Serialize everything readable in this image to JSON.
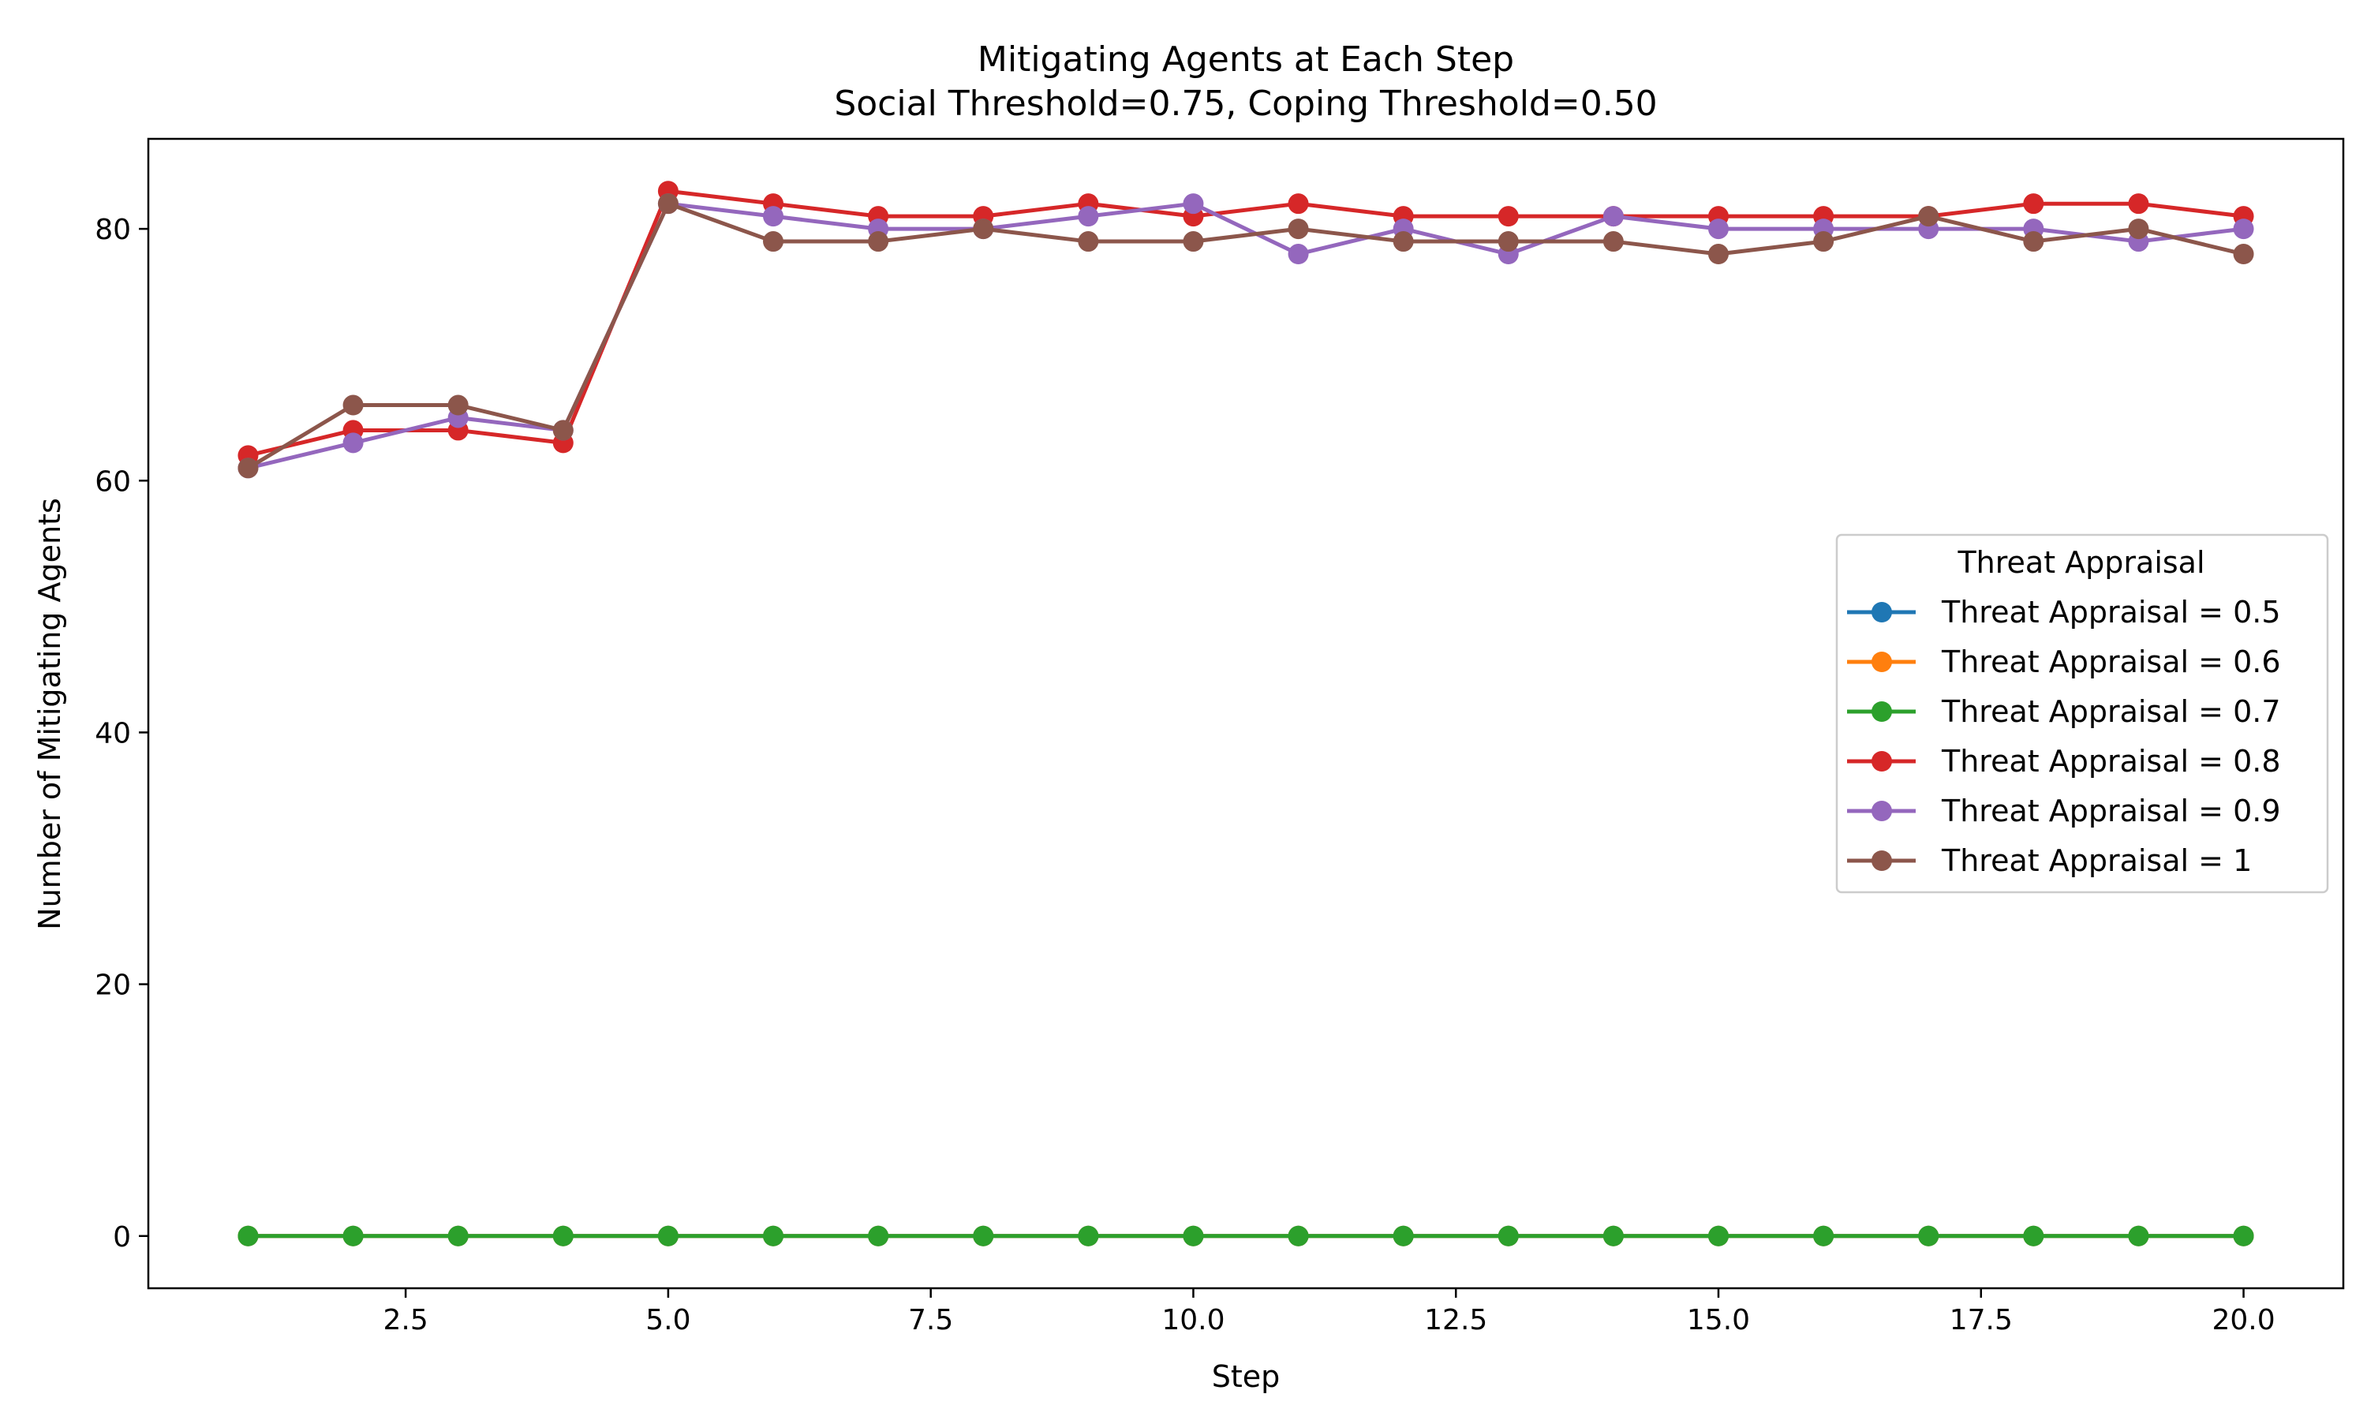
{
  "chart_data": {
    "type": "line",
    "title": "Mitigating Agents at Each Step",
    "subtitle": "Social Threshold=0.75, Coping Threshold=0.50",
    "xlabel": "Step",
    "ylabel": "Number of Mitigating Agents",
    "xlim": [
      0.05,
      20.95
    ],
    "ylim": [
      -4.15,
      87.15
    ],
    "xticks": [
      2.5,
      5.0,
      7.5,
      10.0,
      12.5,
      15.0,
      17.5,
      20.0
    ],
    "xtick_labels": [
      "2.5",
      "5.0",
      "7.5",
      "10.0",
      "12.5",
      "15.0",
      "17.5",
      "20.0"
    ],
    "yticks": [
      0,
      20,
      40,
      60,
      80
    ],
    "ytick_labels": [
      "0",
      "20",
      "40",
      "60",
      "80"
    ],
    "grid": false,
    "legend": {
      "title": "Threat Appraisal",
      "placement": "center-right"
    },
    "x": [
      1,
      2,
      3,
      4,
      5,
      6,
      7,
      8,
      9,
      10,
      11,
      12,
      13,
      14,
      15,
      16,
      17,
      18,
      19,
      20
    ],
    "series": [
      {
        "name": "Threat Appraisal = 0.5",
        "color": "#1f77b4",
        "values": [
          0,
          0,
          0,
          0,
          0,
          0,
          0,
          0,
          0,
          0,
          0,
          0,
          0,
          0,
          0,
          0,
          0,
          0,
          0,
          0
        ]
      },
      {
        "name": "Threat Appraisal = 0.6",
        "color": "#ff7f0e",
        "values": [
          0,
          0,
          0,
          0,
          0,
          0,
          0,
          0,
          0,
          0,
          0,
          0,
          0,
          0,
          0,
          0,
          0,
          0,
          0,
          0
        ]
      },
      {
        "name": "Threat Appraisal = 0.7",
        "color": "#2ca02c",
        "values": [
          0,
          0,
          0,
          0,
          0,
          0,
          0,
          0,
          0,
          0,
          0,
          0,
          0,
          0,
          0,
          0,
          0,
          0,
          0,
          0
        ]
      },
      {
        "name": "Threat Appraisal = 0.8",
        "color": "#d62728",
        "values": [
          62,
          64,
          64,
          63,
          83,
          82,
          81,
          81,
          82,
          81,
          82,
          81,
          81,
          81,
          81,
          81,
          81,
          82,
          82,
          81
        ]
      },
      {
        "name": "Threat Appraisal = 0.9",
        "color": "#9467bd",
        "values": [
          61,
          63,
          65,
          64,
          82,
          81,
          80,
          80,
          81,
          82,
          78,
          80,
          78,
          81,
          80,
          80,
          80,
          80,
          79,
          80
        ]
      },
      {
        "name": "Threat Appraisal = 1",
        "color": "#8c564b",
        "values": [
          61,
          66,
          66,
          64,
          82,
          79,
          79,
          80,
          79,
          79,
          80,
          79,
          79,
          79,
          78,
          79,
          81,
          79,
          80,
          78
        ]
      }
    ]
  }
}
